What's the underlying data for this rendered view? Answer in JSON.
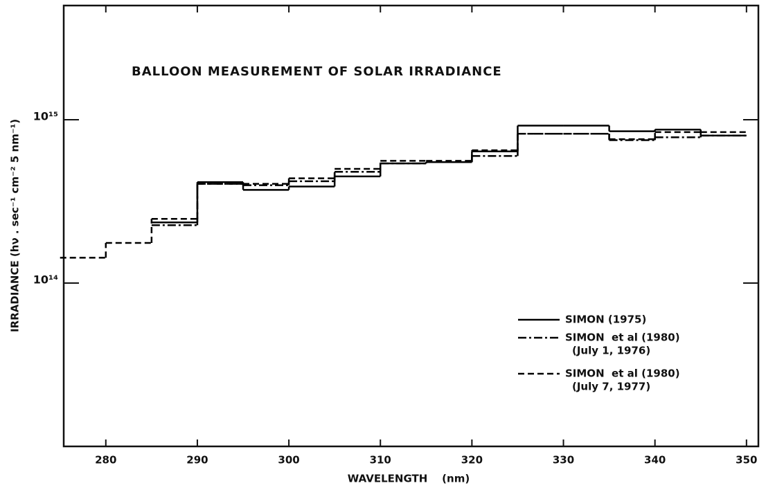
{
  "chart_data": {
    "type": "step",
    "title": "BALLOON MEASUREMENT OF SOLAR IRRADIANCE",
    "x_label": "WAVELENGTH    (nm)",
    "y_label": "IRRADIANCE (hν . sec⁻¹ cm⁻² 5 nm⁻¹)",
    "x": [
      275,
      280,
      285,
      290,
      295,
      300,
      305,
      310,
      315,
      320,
      325,
      330,
      335,
      340,
      345
    ],
    "series": [
      {
        "name": "SIMON (1975)",
        "color": "#000000",
        "dash": "solid",
        "values": [
          null,
          null,
          235000000000000.0,
          415000000000000.0,
          372000000000000.0,
          390000000000000.0,
          450000000000000.0,
          540000000000000.0,
          550000000000000.0,
          640000000000000.0,
          920000000000000.0,
          920000000000000.0,
          850000000000000.0,
          870000000000000.0,
          800000000000000.0
        ]
      },
      {
        "name": "SIMON  et al (1980)",
        "name_line2": "(July 1, 1976)",
        "color": "#000000",
        "dash": "dashdot",
        "values": [
          null,
          null,
          226000000000000.0,
          405000000000000.0,
          397000000000000.0,
          420000000000000.0,
          480000000000000.0,
          540000000000000.0,
          550000000000000.0,
          600000000000000.0,
          820000000000000.0,
          820000000000000.0,
          750000000000000.0,
          780000000000000.0,
          800000000000000.0
        ]
      },
      {
        "name": "SIMON  et al (1980)",
        "name_line2": "(July 7, 1977)",
        "color": "#000000",
        "dash": "dashed",
        "values": [
          143000000000000.0,
          176000000000000.0,
          247000000000000.0,
          405000000000000.0,
          405000000000000.0,
          438000000000000.0,
          500000000000000.0,
          560000000000000.0,
          560000000000000.0,
          650000000000000.0,
          820000000000000.0,
          820000000000000.0,
          760000000000000.0,
          840000000000000.0,
          840000000000000.0
        ]
      }
    ],
    "xlim": [
      275.4,
      351.3
    ],
    "xticks": [
      280,
      290,
      300,
      310,
      320,
      330,
      340,
      350
    ],
    "ylim": [
      10000000000000.0,
      5000000000000000.0
    ],
    "yticks": [
      {
        "value": 100000000000000.0,
        "label": "10¹⁴"
      },
      {
        "value": 1000000000000000.0,
        "label": "10¹⁵"
      }
    ],
    "log_y": true,
    "grid": false,
    "legend": "right"
  }
}
